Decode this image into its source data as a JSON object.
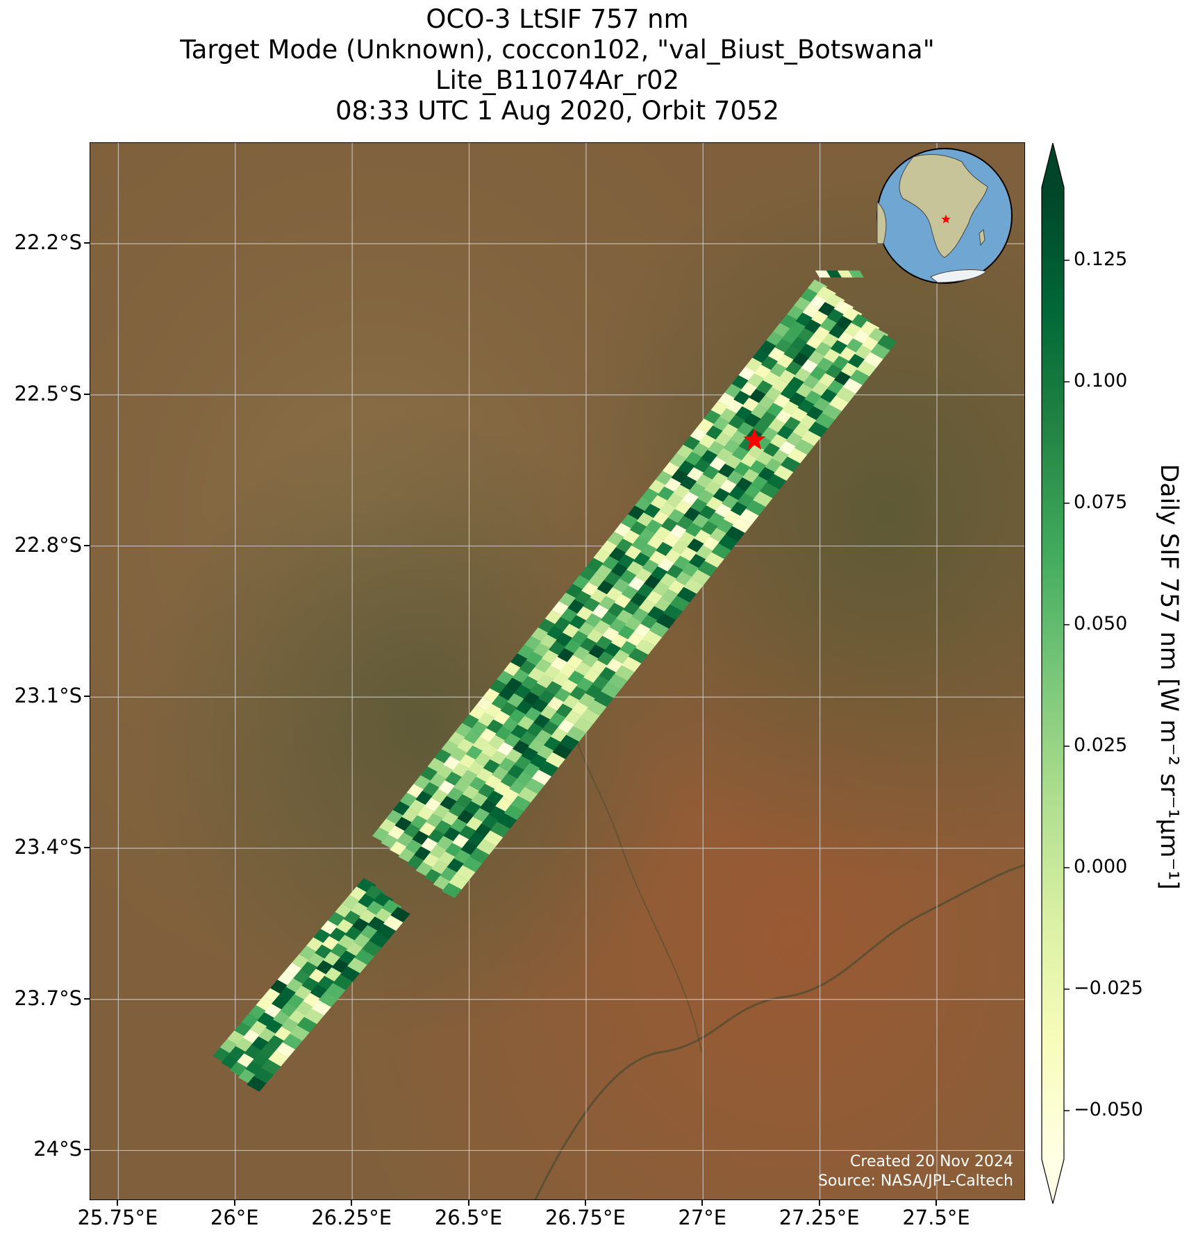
{
  "title": {
    "line1": "OCO-3 LtSIF 757 nm",
    "line2": "Target Mode (Unknown), coccon102, \"val_Biust_Botswana\"",
    "line3": "Lite_B11074Ar_r02",
    "line4": "08:33 UTC 1 Aug 2020, Orbit 7052"
  },
  "map": {
    "lat_ticks": [
      {
        "value": -22.2,
        "label": "22.2°S"
      },
      {
        "value": -22.5,
        "label": "22.5°S"
      },
      {
        "value": -22.8,
        "label": "22.8°S"
      },
      {
        "value": -23.1,
        "label": "23.1°S"
      },
      {
        "value": -23.4,
        "label": "23.4°S"
      },
      {
        "value": -23.7,
        "label": "23.7°S"
      },
      {
        "value": -24.0,
        "label": "24°S"
      }
    ],
    "lon_ticks": [
      {
        "value": 25.75,
        "label": "25.75°E"
      },
      {
        "value": 26.0,
        "label": "26°E"
      },
      {
        "value": 26.25,
        "label": "26.25°E"
      },
      {
        "value": 26.5,
        "label": "26.5°E"
      },
      {
        "value": 26.75,
        "label": "26.75°E"
      },
      {
        "value": 27.0,
        "label": "27°E"
      },
      {
        "value": 27.25,
        "label": "27.25°E"
      },
      {
        "value": 27.5,
        "label": "27.5°E"
      }
    ],
    "extent": {
      "lon_min": 25.69,
      "lon_max": 27.69,
      "lat_min": -24.1,
      "lat_max": -22.0
    },
    "target_site": {
      "lon": 27.11,
      "lat": -22.59,
      "marker": "red-star"
    },
    "background": "satellite-imagery",
    "credits_line1": "Created 20 Nov 2024",
    "credits_line2": "Source: NASA/JPL-Caltech"
  },
  "swath": {
    "segments": [
      {
        "start": {
          "lon": 26.0,
          "lat": -23.85
        },
        "end": {
          "lon": 26.32,
          "lat": -23.5
        }
      },
      {
        "start": {
          "lon": 26.38,
          "lat": -23.44
        },
        "end": {
          "lon": 27.33,
          "lat": -22.33
        }
      },
      {
        "start": {
          "lon": 27.24,
          "lat": -22.26
        },
        "end": {
          "lon": 27.34,
          "lat": -22.26
        }
      }
    ],
    "sif_range": [
      -0.06,
      0.14
    ]
  },
  "colorbar": {
    "label": "Daily SIF 757 nm [W m⁻² sr⁻¹μm⁻¹]",
    "min": -0.06,
    "max": 0.14,
    "extend": "both",
    "colormap": "YlGn",
    "ticks": [
      {
        "value": 0.125,
        "label": "0.125"
      },
      {
        "value": 0.1,
        "label": "0.100"
      },
      {
        "value": 0.075,
        "label": "0.075"
      },
      {
        "value": 0.05,
        "label": "0.050"
      },
      {
        "value": 0.025,
        "label": "0.025"
      },
      {
        "value": 0.0,
        "label": "0.000"
      },
      {
        "value": -0.025,
        "label": "−0.025"
      },
      {
        "value": -0.05,
        "label": "−0.050"
      }
    ],
    "colors": [
      "#ffffe5",
      "#f7fcb9",
      "#d9f0a3",
      "#addd8e",
      "#78c679",
      "#41ab5d",
      "#238443",
      "#006837",
      "#004529"
    ]
  },
  "inset_globe": {
    "ocean_color": "#6fa6d2",
    "land_color": "#c7c49a",
    "marker": "red-star"
  }
}
